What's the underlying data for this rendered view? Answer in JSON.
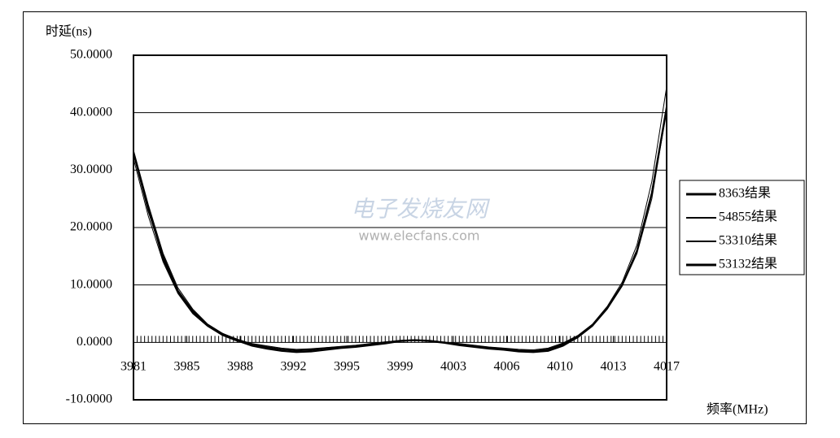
{
  "chart_data": {
    "type": "line",
    "y_label": "时延(ns)",
    "x_label": "频率(MHz)",
    "watermark": [
      "电子发烧友网",
      "www.elecfans.com"
    ],
    "x": [
      3981,
      3982,
      3983,
      3984,
      3985,
      3986,
      3987,
      3988,
      3989,
      3990,
      3991,
      3992,
      3993,
      3994,
      3995,
      3996,
      3997,
      3998,
      3999,
      4000,
      4001,
      4002,
      4003,
      4004,
      4005,
      4006,
      4007,
      4008,
      4009,
      4010,
      4011,
      4012,
      4013,
      4014,
      4015,
      4016,
      4017
    ],
    "series": [
      {
        "name": "8363结果",
        "color": "#000000",
        "width": 2,
        "values": [
          33,
          23,
          15,
          9,
          5.5,
          3,
          1.5,
          0.5,
          -0.3,
          -0.8,
          -1.2,
          -1.4,
          -1.3,
          -1,
          -0.8,
          -0.6,
          -0.3,
          0,
          0.3,
          0.4,
          0.3,
          0,
          -0.3,
          -0.6,
          -0.9,
          -1.1,
          -1.4,
          -1.5,
          -1.2,
          -0.3,
          1,
          3,
          6,
          10,
          16,
          26,
          41
        ]
      },
      {
        "name": "54855结果",
        "color": "#000000",
        "width": 1,
        "values": [
          33.5,
          24,
          15.5,
          9.5,
          5.8,
          3.2,
          1.6,
          0.4,
          -0.2,
          -0.6,
          -1,
          -1.2,
          -1.1,
          -0.9,
          -0.7,
          -0.5,
          -0.2,
          0.1,
          0.3,
          0.4,
          0.2,
          0,
          -0.2,
          -0.5,
          -0.8,
          -1,
          -1.2,
          -1.3,
          -1,
          -0.1,
          1.2,
          3.2,
          6.3,
          10.5,
          17,
          28,
          44.5
        ]
      },
      {
        "name": "53310结果",
        "color": "#000000",
        "width": 1,
        "values": [
          32,
          22,
          14,
          8.5,
          5,
          2.8,
          1.2,
          0.2,
          -0.5,
          -1,
          -1.4,
          -1.6,
          -1.5,
          -1.2,
          -1,
          -0.7,
          -0.4,
          -0.1,
          0.2,
          0.3,
          0.2,
          -0.1,
          -0.4,
          -0.7,
          -1,
          -1.3,
          -1.5,
          -1.6,
          -1.4,
          -0.5,
          0.8,
          2.8,
          5.8,
          9.8,
          15.5,
          25,
          40.5
        ]
      },
      {
        "name": "53132结果",
        "color": "#000000",
        "width": 2,
        "values": [
          33,
          23.5,
          14.5,
          8.8,
          5.2,
          2.9,
          1.3,
          0.3,
          -0.6,
          -1.1,
          -1.5,
          -1.7,
          -1.6,
          -1.3,
          -1,
          -0.8,
          -0.5,
          -0.2,
          0.2,
          0.4,
          0.2,
          -0.1,
          -0.5,
          -0.8,
          -1.1,
          -1.3,
          -1.6,
          -1.7,
          -1.5,
          -0.6,
          0.9,
          3,
          6,
          10,
          16,
          26,
          40.5
        ]
      }
    ],
    "xlim": [
      3981,
      4017
    ],
    "xticks": [
      {
        "value": 3981,
        "label": "3981"
      },
      {
        "value": 3984.6,
        "label": "3985"
      },
      {
        "value": 3988.2,
        "label": "3988"
      },
      {
        "value": 3991.8,
        "label": "3992"
      },
      {
        "value": 3995.4,
        "label": "3995"
      },
      {
        "value": 3999,
        "label": "3999"
      },
      {
        "value": 4002.6,
        "label": "4003"
      },
      {
        "value": 4006.2,
        "label": "4006"
      },
      {
        "value": 4009.8,
        "label": "4010"
      },
      {
        "value": 4013.4,
        "label": "4013"
      },
      {
        "value": 4017,
        "label": "4017"
      }
    ],
    "ylim": [
      -10,
      50
    ],
    "yticks": [
      {
        "value": -10,
        "label": "-10.0000"
      },
      {
        "value": 0,
        "label": "0.0000"
      },
      {
        "value": 10,
        "label": "10.0000"
      },
      {
        "value": 20,
        "label": "20.0000"
      },
      {
        "value": 30,
        "label": "30.0000"
      },
      {
        "value": 40,
        "label": "40.0000"
      },
      {
        "value": 50,
        "label": "50.0000"
      }
    ],
    "grid": true,
    "legend": "right"
  }
}
